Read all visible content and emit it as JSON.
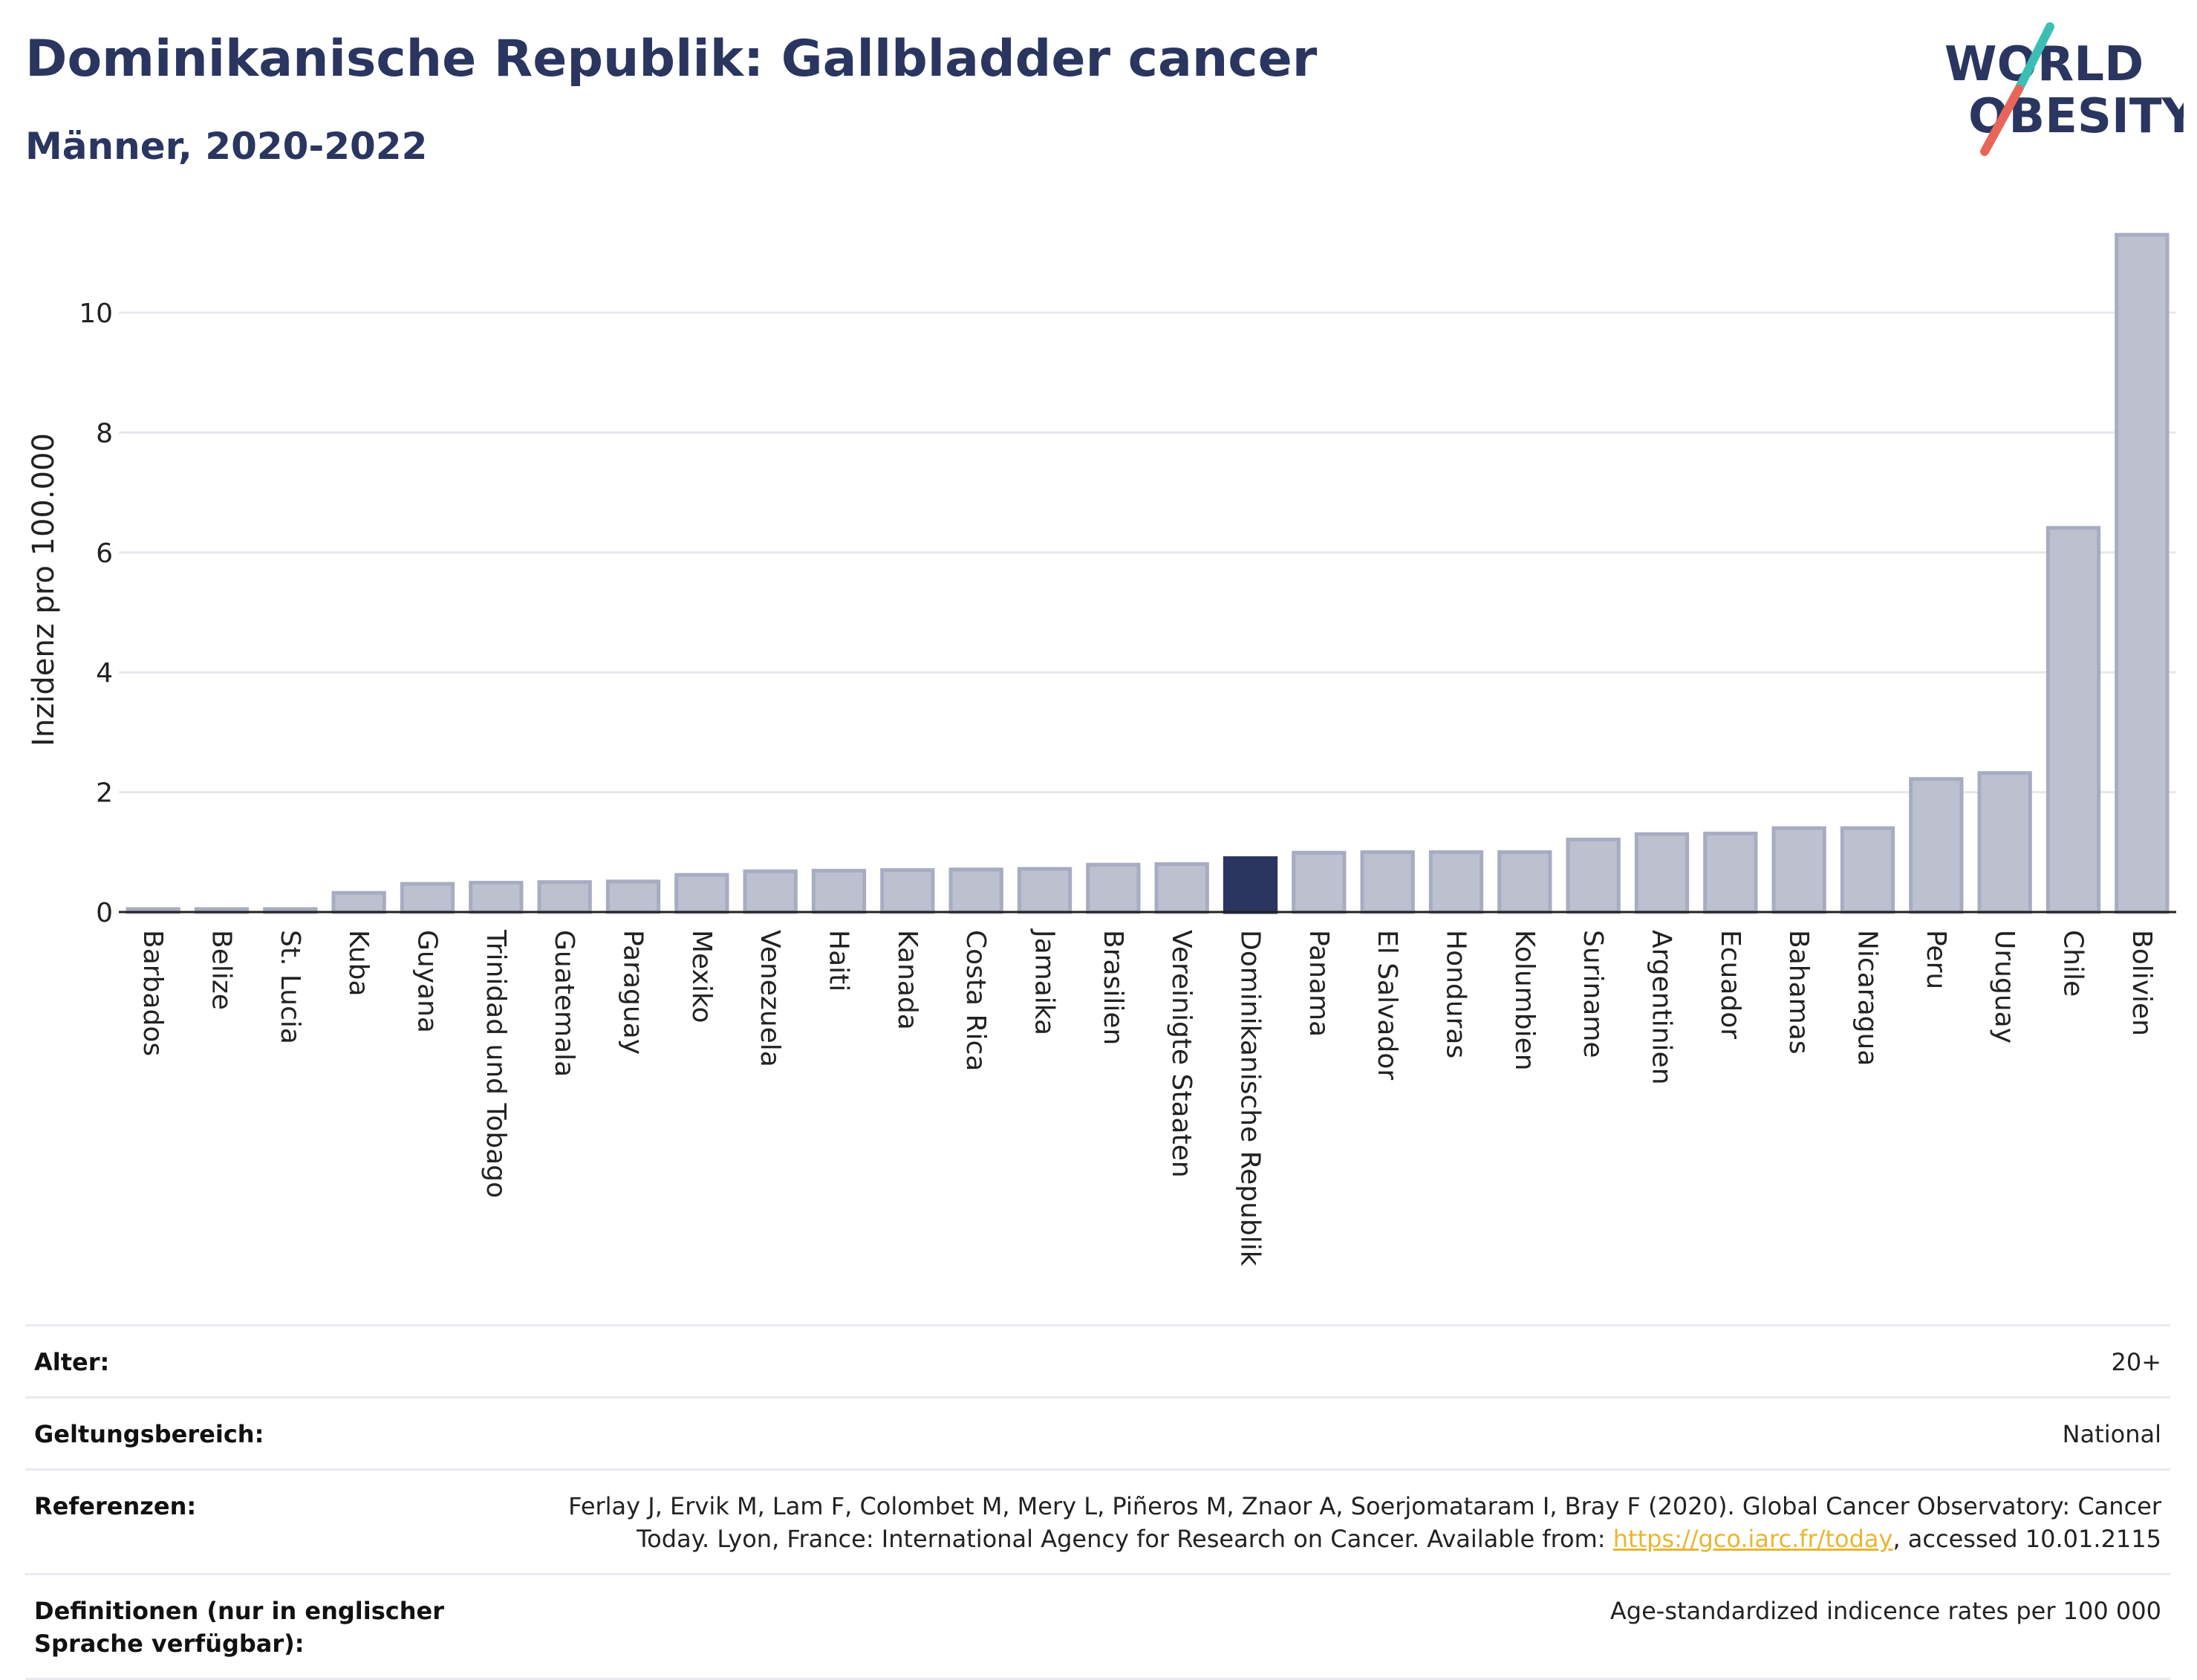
{
  "header": {
    "title": "Dominikanische Republik: Gallbladder cancer",
    "subtitle": "Männer, 2020-2022"
  },
  "logo": {
    "line1": "WORLD",
    "line2": "OBESITY",
    "colors": {
      "text": "#2a3560",
      "slash_top": "#3bbfb5",
      "slash_bottom": "#e8655a"
    }
  },
  "colors": {
    "bar": "#bcc0cf",
    "bar_border": "#a7acc2",
    "highlight": "#2a3560",
    "grid": "#e6e8ee",
    "axis": "#222222"
  },
  "chart_data": {
    "type": "bar",
    "ylabel": "Inzidenz pro 100.000",
    "xlabel": "",
    "ylim": [
      0,
      11.5
    ],
    "yticks": [
      0,
      2,
      4,
      6,
      8,
      10
    ],
    "grid": true,
    "highlight": "Dominikanische Republik",
    "categories": [
      "Barbados",
      "Belize",
      "St. Lucia",
      "Kuba",
      "Guyana",
      "Trinidad und Tobago",
      "Guatemala",
      "Paraguay",
      "Mexiko",
      "Venezuela",
      "Haiti",
      "Kanada",
      "Costa Rica",
      "Jamaika",
      "Brasilien",
      "Vereinigte Staaten",
      "Dominikanische Republik",
      "Panama",
      "El Salvador",
      "Honduras",
      "Kolumbien",
      "Suriname",
      "Argentinien",
      "Ecuador",
      "Bahamas",
      "Nicaragua",
      "Peru",
      "Uruguay",
      "Chile",
      "Bolivien"
    ],
    "values": [
      0.05,
      0.05,
      0.05,
      0.32,
      0.47,
      0.49,
      0.5,
      0.51,
      0.62,
      0.68,
      0.69,
      0.7,
      0.71,
      0.72,
      0.79,
      0.8,
      0.9,
      0.99,
      1.0,
      1.0,
      1.0,
      1.21,
      1.3,
      1.31,
      1.4,
      1.4,
      2.22,
      2.32,
      6.41,
      11.3
    ]
  },
  "info": [
    {
      "key": "Alter:",
      "value": "20+"
    },
    {
      "key": "Geltungsbereich:",
      "value": "National"
    },
    {
      "key": "Referenzen:",
      "value_line1": "Ferlay J, Ervik M, Lam F, Colombet M, Mery L, Piñeros M, Znaor A, Soerjomataram I, Bray F (2020). Global Cancer Observatory: Cancer",
      "value_pre": "Today. Lyon, France: International Agency for Research on Cancer. Available from: ",
      "link": "https://gco.iarc.fr/today",
      "value_post": ", accessed 10.01.2115"
    },
    {
      "key": "Definitionen (nur in englischer Sprache verfügbar):",
      "value": "Age-standardized indicence rates per 100 000"
    }
  ]
}
